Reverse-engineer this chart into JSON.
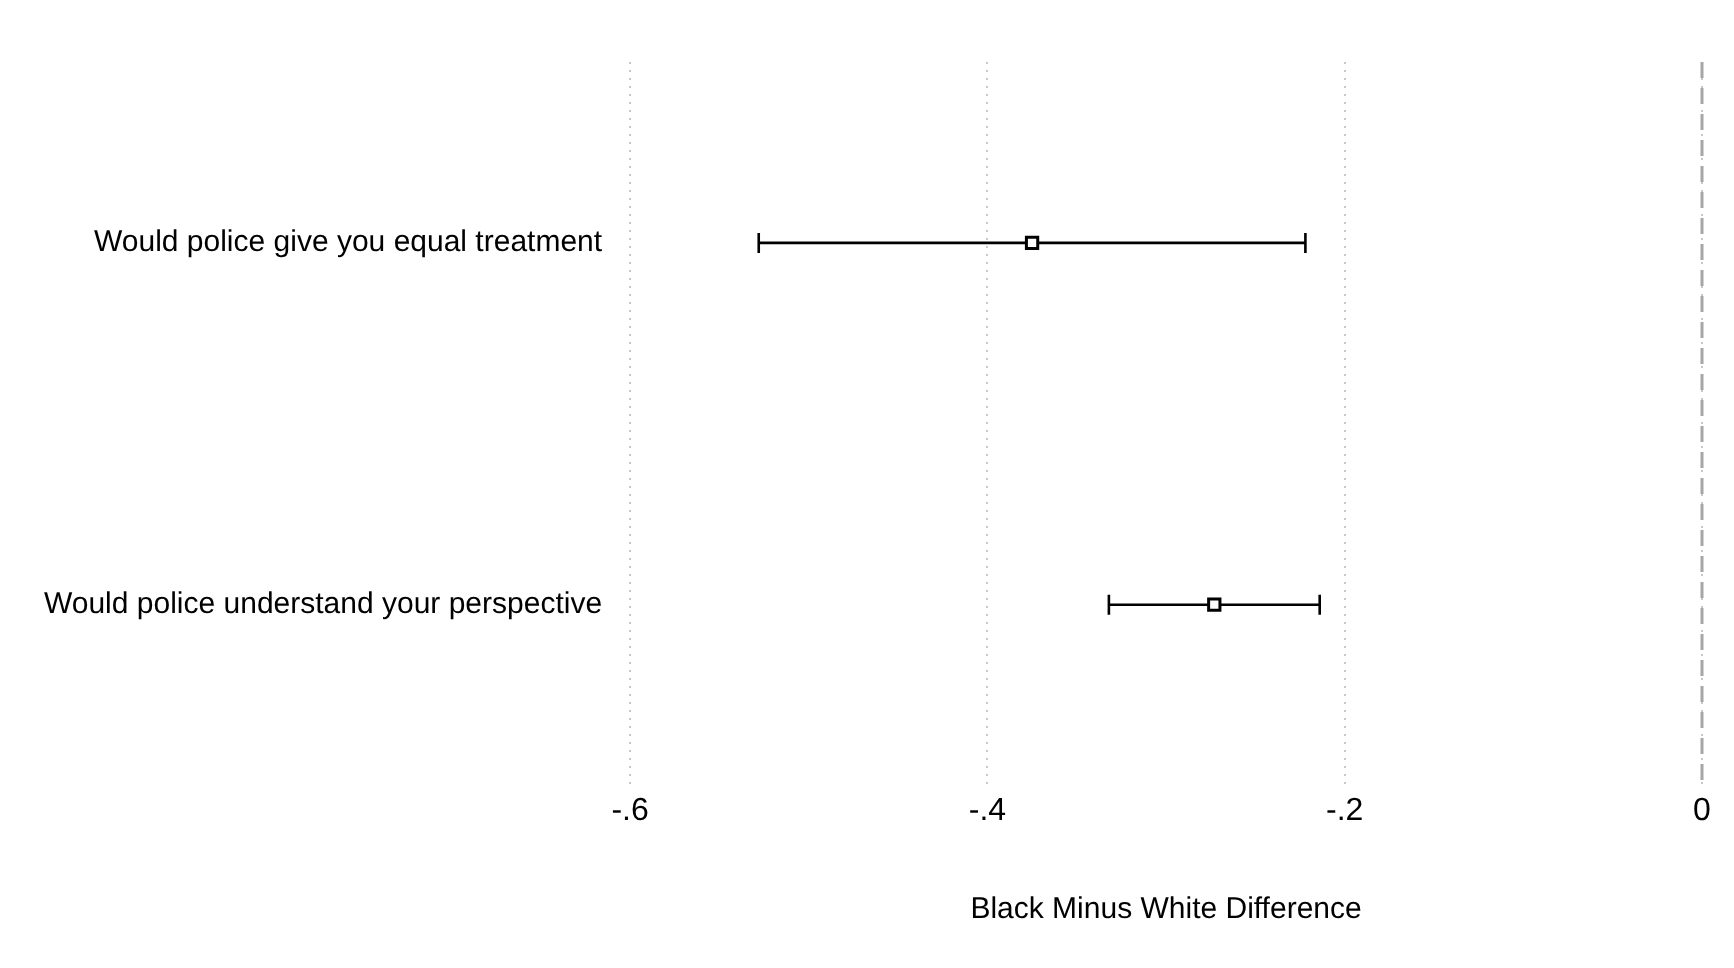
{
  "chart_data": {
    "type": "scatter",
    "orientation": "horizontal",
    "xlabel": "Black Minus White Difference",
    "categories": [
      "Would police give you equal treatment",
      "Would police understand your perspective"
    ],
    "values": [
      -0.375,
      -0.273
    ],
    "errors": [
      [
        -0.528,
        -0.222
      ],
      [
        -0.332,
        -0.214
      ]
    ],
    "color": "#000000",
    "marker": "square",
    "xlim": [
      -0.6,
      0
    ],
    "xticks": [
      {
        "value": -0.6,
        "label": "-.6"
      },
      {
        "value": -0.4,
        "label": "-.4"
      },
      {
        "value": -0.2,
        "label": "-.2"
      },
      0
    ],
    "grid": "x",
    "legend": false,
    "ref_lines": [
      {
        "axis": "x",
        "value": 0,
        "color": "#a6a6a6",
        "line_style": "dashed"
      }
    ]
  }
}
